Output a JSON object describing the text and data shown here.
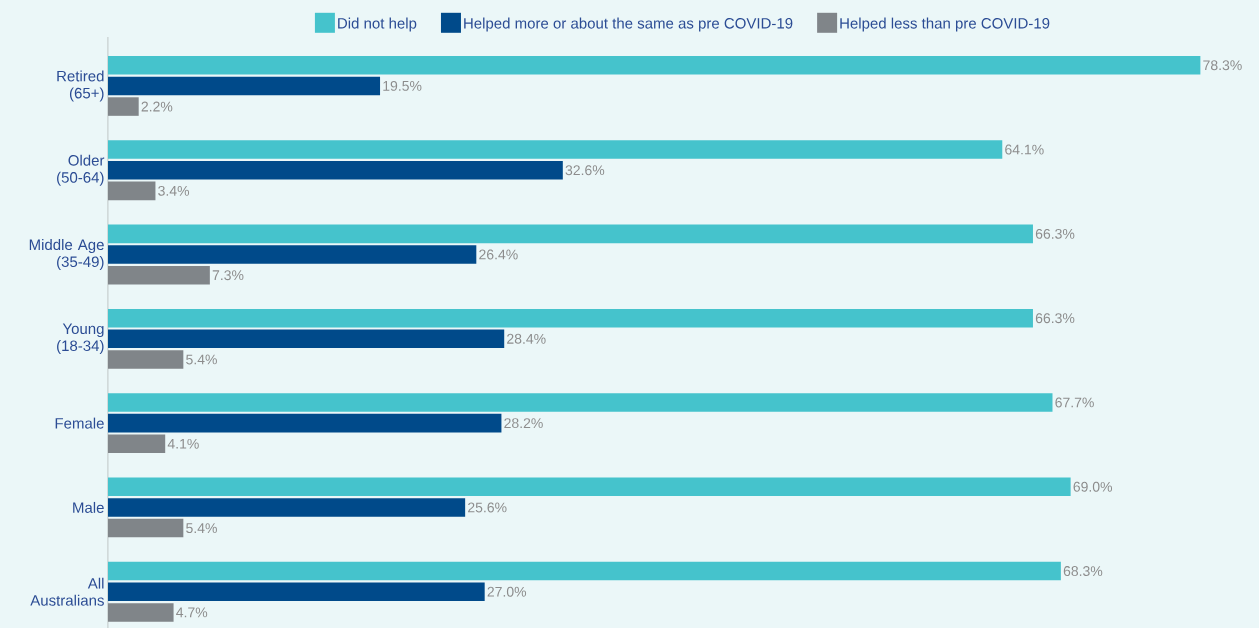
{
  "chart_data": {
    "type": "bar",
    "orientation": "horizontal",
    "categories": [
      "Retired (65+)",
      "Older (50-64)",
      "Middle Age (35-49)",
      "Young (18-34)",
      "Female",
      "Male",
      "All Australians"
    ],
    "series": [
      {
        "name": "Did not help",
        "color": "#45c3cc",
        "values": [
          78.3,
          64.1,
          66.3,
          66.3,
          67.7,
          69.0,
          68.3
        ],
        "value_labels": [
          "78.3%",
          "64.1%",
          "66.3%",
          "66.3%",
          "67.7%",
          "69.0%",
          "68.3%"
        ]
      },
      {
        "name": "Helped more or about the same as pre COVID-19",
        "color": "#004a8a",
        "values": [
          19.5,
          32.6,
          26.4,
          28.4,
          28.2,
          25.6,
          27.0
        ],
        "value_labels": [
          "19.5%",
          "32.6%",
          "26.4%",
          "28.4%",
          "28.2%",
          "25.6%",
          "27.0%"
        ]
      },
      {
        "name": "Helped less than pre COVID-19",
        "color": "#808589",
        "values": [
          2.2,
          3.4,
          7.3,
          5.4,
          4.1,
          5.4,
          4.7
        ],
        "value_labels": [
          "2.2%",
          "3.4%",
          "7.3%",
          "5.4%",
          "4.1%",
          "5.4%",
          "4.7%"
        ]
      }
    ],
    "xlim": [
      0,
      82.5
    ],
    "legend": "top",
    "grid": false
  }
}
